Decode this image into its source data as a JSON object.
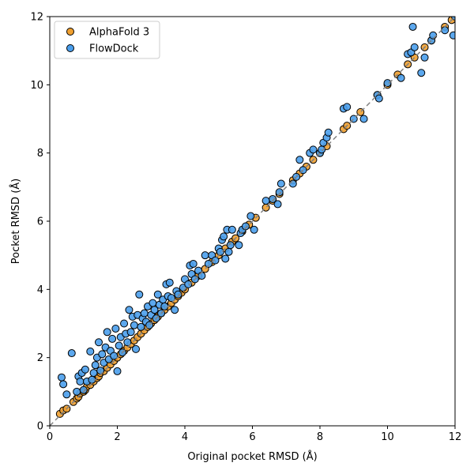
{
  "chart_data": {
    "type": "scatter",
    "title": "",
    "xlabel": "Original pocket RMSD (Å)",
    "ylabel": "Pocket RMSD (Å)",
    "xlim": [
      0,
      12
    ],
    "ylim": [
      0,
      12
    ],
    "xticks": [
      "0",
      "2",
      "4",
      "6",
      "8",
      "10",
      "12"
    ],
    "yticks": [
      "0",
      "2",
      "4",
      "6",
      "8",
      "10",
      "12"
    ],
    "grid": false,
    "legend_position": "top-left",
    "reference_line": "y = x (dashed gray)",
    "series": [
      {
        "name": "AlphaFold 3",
        "color": "#F0A030",
        "points": [
          [
            0.3,
            0.35
          ],
          [
            0.4,
            0.45
          ],
          [
            0.5,
            0.5
          ],
          [
            0.7,
            0.7
          ],
          [
            0.8,
            0.8
          ],
          [
            0.85,
            0.85
          ],
          [
            0.9,
            0.95
          ],
          [
            1.0,
            1.0
          ],
          [
            1.05,
            1.05
          ],
          [
            1.1,
            1.15
          ],
          [
            1.2,
            1.2
          ],
          [
            1.3,
            1.3
          ],
          [
            1.4,
            1.4
          ],
          [
            1.45,
            1.45
          ],
          [
            1.5,
            1.55
          ],
          [
            1.6,
            1.6
          ],
          [
            1.7,
            1.7
          ],
          [
            1.8,
            1.8
          ],
          [
            1.9,
            1.9
          ],
          [
            2.0,
            2.0
          ],
          [
            2.1,
            2.1
          ],
          [
            2.2,
            2.2
          ],
          [
            2.3,
            2.3
          ],
          [
            2.4,
            2.4
          ],
          [
            2.5,
            2.5
          ],
          [
            2.6,
            2.6
          ],
          [
            2.7,
            2.7
          ],
          [
            2.8,
            2.8
          ],
          [
            2.9,
            2.9
          ],
          [
            3.0,
            3.0
          ],
          [
            3.1,
            3.1
          ],
          [
            3.2,
            3.2
          ],
          [
            3.3,
            3.3
          ],
          [
            3.4,
            3.4
          ],
          [
            3.5,
            3.5
          ],
          [
            3.6,
            3.6
          ],
          [
            3.7,
            3.7
          ],
          [
            3.8,
            3.8
          ],
          [
            3.9,
            3.9
          ],
          [
            4.0,
            4.0
          ],
          [
            4.2,
            4.2
          ],
          [
            4.4,
            4.4
          ],
          [
            4.6,
            4.6
          ],
          [
            4.8,
            4.8
          ],
          [
            5.0,
            5.0
          ],
          [
            5.2,
            5.2
          ],
          [
            5.4,
            5.4
          ],
          [
            5.5,
            5.5
          ],
          [
            5.7,
            5.7
          ],
          [
            5.9,
            5.9
          ],
          [
            6.1,
            6.1
          ],
          [
            6.4,
            6.4
          ],
          [
            6.6,
            6.6
          ],
          [
            6.8,
            6.8
          ],
          [
            7.2,
            7.2
          ],
          [
            7.4,
            7.4
          ],
          [
            7.6,
            7.6
          ],
          [
            7.8,
            7.8
          ],
          [
            8.0,
            8.0
          ],
          [
            8.2,
            8.2
          ],
          [
            8.7,
            8.7
          ],
          [
            8.8,
            8.8
          ],
          [
            9.2,
            9.2
          ],
          [
            9.7,
            9.7
          ],
          [
            10.0,
            10.0
          ],
          [
            10.3,
            10.3
          ],
          [
            10.6,
            10.6
          ],
          [
            10.8,
            10.8
          ],
          [
            11.1,
            11.1
          ],
          [
            11.3,
            11.3
          ],
          [
            11.7,
            11.7
          ],
          [
            11.9,
            11.9
          ]
        ]
      },
      {
        "name": "FlowDock",
        "color": "#4A9EEC",
        "points": [
          [
            0.35,
            1.42
          ],
          [
            0.4,
            1.22
          ],
          [
            0.5,
            0.92
          ],
          [
            0.65,
            2.13
          ],
          [
            0.8,
            1.0
          ],
          [
            0.85,
            1.45
          ],
          [
            0.9,
            1.3
          ],
          [
            0.95,
            1.55
          ],
          [
            1.0,
            1.05
          ],
          [
            1.05,
            1.65
          ],
          [
            1.1,
            1.3
          ],
          [
            1.2,
            2.18
          ],
          [
            1.25,
            1.35
          ],
          [
            1.3,
            1.55
          ],
          [
            1.35,
            1.78
          ],
          [
            1.4,
            2.0
          ],
          [
            1.45,
            2.45
          ],
          [
            1.5,
            1.62
          ],
          [
            1.55,
            2.1
          ],
          [
            1.6,
            1.85
          ],
          [
            1.65,
            2.3
          ],
          [
            1.7,
            2.75
          ],
          [
            1.75,
            1.95
          ],
          [
            1.8,
            2.2
          ],
          [
            1.85,
            2.55
          ],
          [
            1.9,
            2.05
          ],
          [
            1.95,
            2.85
          ],
          [
            2.0,
            1.6
          ],
          [
            2.05,
            2.35
          ],
          [
            2.1,
            2.6
          ],
          [
            2.15,
            2.15
          ],
          [
            2.2,
            3.0
          ],
          [
            2.25,
            2.7
          ],
          [
            2.3,
            2.45
          ],
          [
            2.35,
            3.4
          ],
          [
            2.4,
            2.75
          ],
          [
            2.45,
            3.2
          ],
          [
            2.5,
            2.95
          ],
          [
            2.55,
            2.25
          ],
          [
            2.6,
            3.25
          ],
          [
            2.65,
            3.85
          ],
          [
            2.7,
            2.9
          ],
          [
            2.75,
            3.15
          ],
          [
            2.8,
            3.3
          ],
          [
            2.85,
            3.05
          ],
          [
            2.9,
            3.5
          ],
          [
            2.95,
            2.95
          ],
          [
            3.0,
            3.25
          ],
          [
            3.05,
            3.6
          ],
          [
            3.1,
            3.4
          ],
          [
            3.15,
            3.15
          ],
          [
            3.2,
            3.85
          ],
          [
            3.25,
            3.55
          ],
          [
            3.3,
            3.3
          ],
          [
            3.35,
            3.7
          ],
          [
            3.4,
            3.5
          ],
          [
            3.45,
            4.15
          ],
          [
            3.5,
            3.8
          ],
          [
            3.55,
            4.2
          ],
          [
            3.6,
            3.75
          ],
          [
            3.7,
            3.4
          ],
          [
            3.75,
            3.95
          ],
          [
            3.8,
            3.85
          ],
          [
            3.95,
            4.05
          ],
          [
            4.0,
            4.3
          ],
          [
            4.1,
            4.15
          ],
          [
            4.15,
            4.7
          ],
          [
            4.2,
            4.45
          ],
          [
            4.25,
            4.75
          ],
          [
            4.3,
            4.3
          ],
          [
            4.4,
            4.55
          ],
          [
            4.5,
            4.4
          ],
          [
            4.6,
            5.0
          ],
          [
            4.7,
            4.75
          ],
          [
            4.8,
            5.0
          ],
          [
            4.9,
            4.85
          ],
          [
            5.0,
            5.2
          ],
          [
            5.05,
            5.1
          ],
          [
            5.1,
            5.45
          ],
          [
            5.15,
            5.55
          ],
          [
            5.2,
            4.9
          ],
          [
            5.25,
            5.75
          ],
          [
            5.3,
            5.1
          ],
          [
            5.35,
            5.3
          ],
          [
            5.4,
            5.75
          ],
          [
            5.6,
            5.3
          ],
          [
            5.65,
            5.65
          ],
          [
            5.7,
            5.75
          ],
          [
            5.8,
            5.85
          ],
          [
            5.95,
            6.15
          ],
          [
            6.05,
            5.75
          ],
          [
            6.4,
            6.6
          ],
          [
            6.6,
            6.65
          ],
          [
            6.75,
            6.5
          ],
          [
            6.8,
            6.85
          ],
          [
            6.85,
            7.1
          ],
          [
            7.2,
            7.1
          ],
          [
            7.3,
            7.3
          ],
          [
            7.4,
            7.8
          ],
          [
            7.5,
            7.5
          ],
          [
            7.7,
            8.0
          ],
          [
            7.8,
            8.1
          ],
          [
            8.0,
            8.0
          ],
          [
            8.05,
            8.1
          ],
          [
            8.1,
            8.3
          ],
          [
            8.2,
            8.45
          ],
          [
            8.25,
            8.6
          ],
          [
            8.7,
            9.3
          ],
          [
            8.8,
            9.35
          ],
          [
            9.0,
            9.0
          ],
          [
            9.3,
            9.0
          ],
          [
            9.7,
            9.7
          ],
          [
            9.75,
            9.6
          ],
          [
            10.0,
            10.05
          ],
          [
            10.4,
            10.2
          ],
          [
            10.6,
            10.9
          ],
          [
            10.7,
            10.95
          ],
          [
            10.75,
            11.7
          ],
          [
            10.8,
            11.1
          ],
          [
            11.0,
            10.35
          ],
          [
            11.1,
            10.8
          ],
          [
            11.3,
            11.3
          ],
          [
            11.35,
            11.45
          ],
          [
            11.7,
            11.6
          ],
          [
            11.95,
            11.45
          ],
          [
            12.0,
            12.0
          ]
        ]
      }
    ]
  }
}
